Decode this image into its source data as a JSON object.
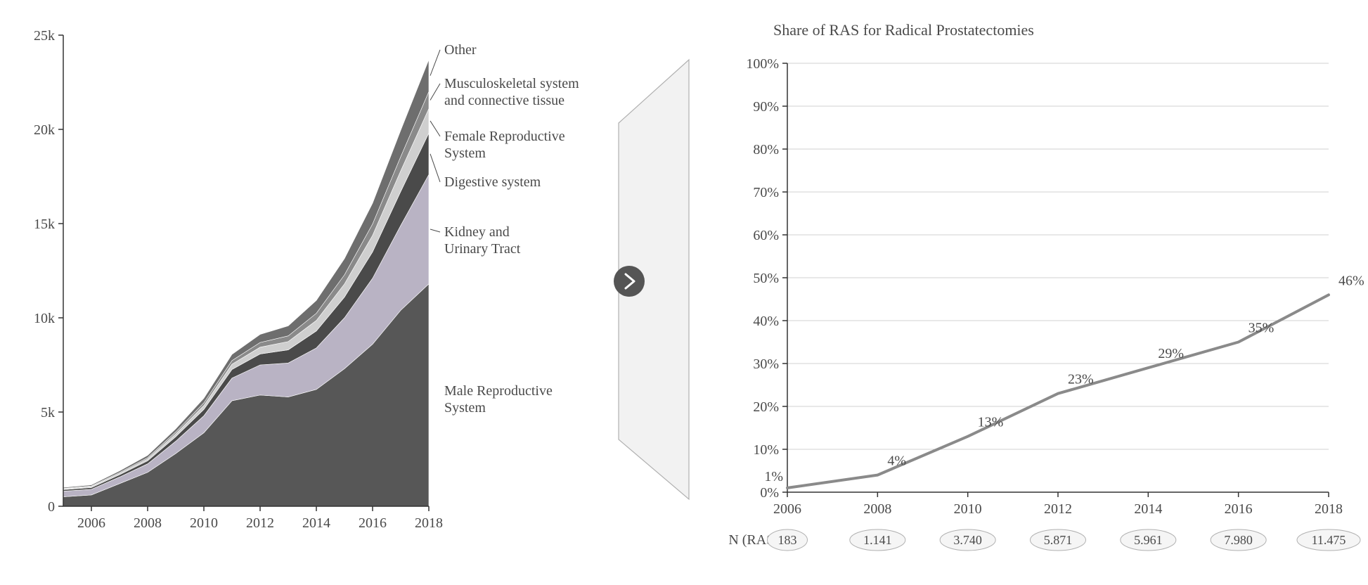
{
  "left_chart": {
    "type": "area",
    "years": [
      2005,
      2006,
      2007,
      2008,
      2009,
      2010,
      2011,
      2012,
      2013,
      2014,
      2015,
      2016,
      2017,
      2018
    ],
    "series": [
      {
        "name": "Male Reproductive System",
        "label": "Male Reproductive\nSystem",
        "color": "#575757",
        "values": [
          500,
          600,
          1200,
          1800,
          2800,
          3900,
          5600,
          5900,
          5800,
          6200,
          7300,
          8600,
          10400,
          11800
        ]
      },
      {
        "name": "Kidney and Urinary Tract",
        "label": "Kidney and\nUrinary Tract",
        "color": "#b9b3c4",
        "values": [
          300,
          300,
          350,
          450,
          650,
          900,
          1200,
          1600,
          1800,
          2200,
          2700,
          3500,
          4500,
          5800
        ]
      },
      {
        "name": "Digestive system",
        "label": "Digestive system",
        "color": "#4a4a4a",
        "values": [
          80,
          90,
          120,
          160,
          240,
          340,
          460,
          580,
          700,
          900,
          1100,
          1400,
          1800,
          2200
        ]
      },
      {
        "name": "Female Reproductive System",
        "label": "Female Reproductive\nSystem",
        "color": "#cfcfcf",
        "values": [
          40,
          50,
          70,
          100,
          150,
          210,
          280,
          360,
          440,
          560,
          700,
          880,
          1100,
          1300
        ]
      },
      {
        "name": "Musculoskeletal system and connective tissue",
        "label": "Musculoskeletal system\nand connective tissue",
        "color": "#8a8a8a",
        "values": [
          30,
          35,
          50,
          70,
          100,
          140,
          190,
          250,
          300,
          380,
          480,
          600,
          750,
          900
        ]
      },
      {
        "name": "Other",
        "label": "Other",
        "color": "#6e6e6e",
        "values": [
          50,
          60,
          85,
          120,
          170,
          240,
          330,
          430,
          530,
          680,
          860,
          1100,
          1400,
          1700
        ]
      }
    ],
    "y_ticks": [
      0,
      5000,
      10000,
      15000,
      20000,
      25000
    ],
    "y_tick_labels": [
      "0",
      "5k",
      "10k",
      "15k",
      "20k",
      "25k"
    ],
    "x_ticks": [
      2006,
      2008,
      2010,
      2012,
      2014,
      2016,
      2018
    ],
    "ylim": [
      0,
      25000
    ],
    "xlim": [
      2005,
      2018
    ],
    "background_color": "#ffffff",
    "axis_color": "#333333",
    "label_fontsize": 20
  },
  "right_chart": {
    "type": "line",
    "title": "Share of RAS for Radical Prostatectomies",
    "years": [
      2006,
      2008,
      2010,
      2012,
      2014,
      2016,
      2018
    ],
    "values_pct": [
      1,
      4,
      13,
      23,
      29,
      35,
      46
    ],
    "point_labels": [
      "1%",
      "4%",
      "13%",
      "23%",
      "29%",
      "35%",
      "46%"
    ],
    "y_ticks": [
      0,
      10,
      20,
      30,
      40,
      50,
      60,
      70,
      80,
      90,
      100
    ],
    "y_tick_labels": [
      "0%",
      "10%",
      "20%",
      "30%",
      "40%",
      "50%",
      "60%",
      "70%",
      "80%",
      "90%",
      "100%"
    ],
    "x_ticks": [
      2006,
      2008,
      2010,
      2012,
      2014,
      2016,
      2018
    ],
    "ylim": [
      0,
      100
    ],
    "xlim": [
      2006,
      2018
    ],
    "line_color": "#8a8a8a",
    "line_width": 4,
    "grid_color": "#d0d0d0",
    "axis_color": "#333333",
    "label_fontsize": 20,
    "title_fontsize": 22,
    "n_ras_label": "N (RAS)",
    "n_ras_values": [
      "183",
      "1.141",
      "3.740",
      "5.871",
      "5.961",
      "7.980",
      "11.475"
    ],
    "chip_fill": "#f5f5f5",
    "chip_stroke": "#b0b0b0"
  },
  "connector": {
    "triangle_fill": "#f2f2f2",
    "triangle_stroke": "#b0b0b0",
    "circle_fill": "#555555",
    "arrow_color": "#ffffff"
  }
}
